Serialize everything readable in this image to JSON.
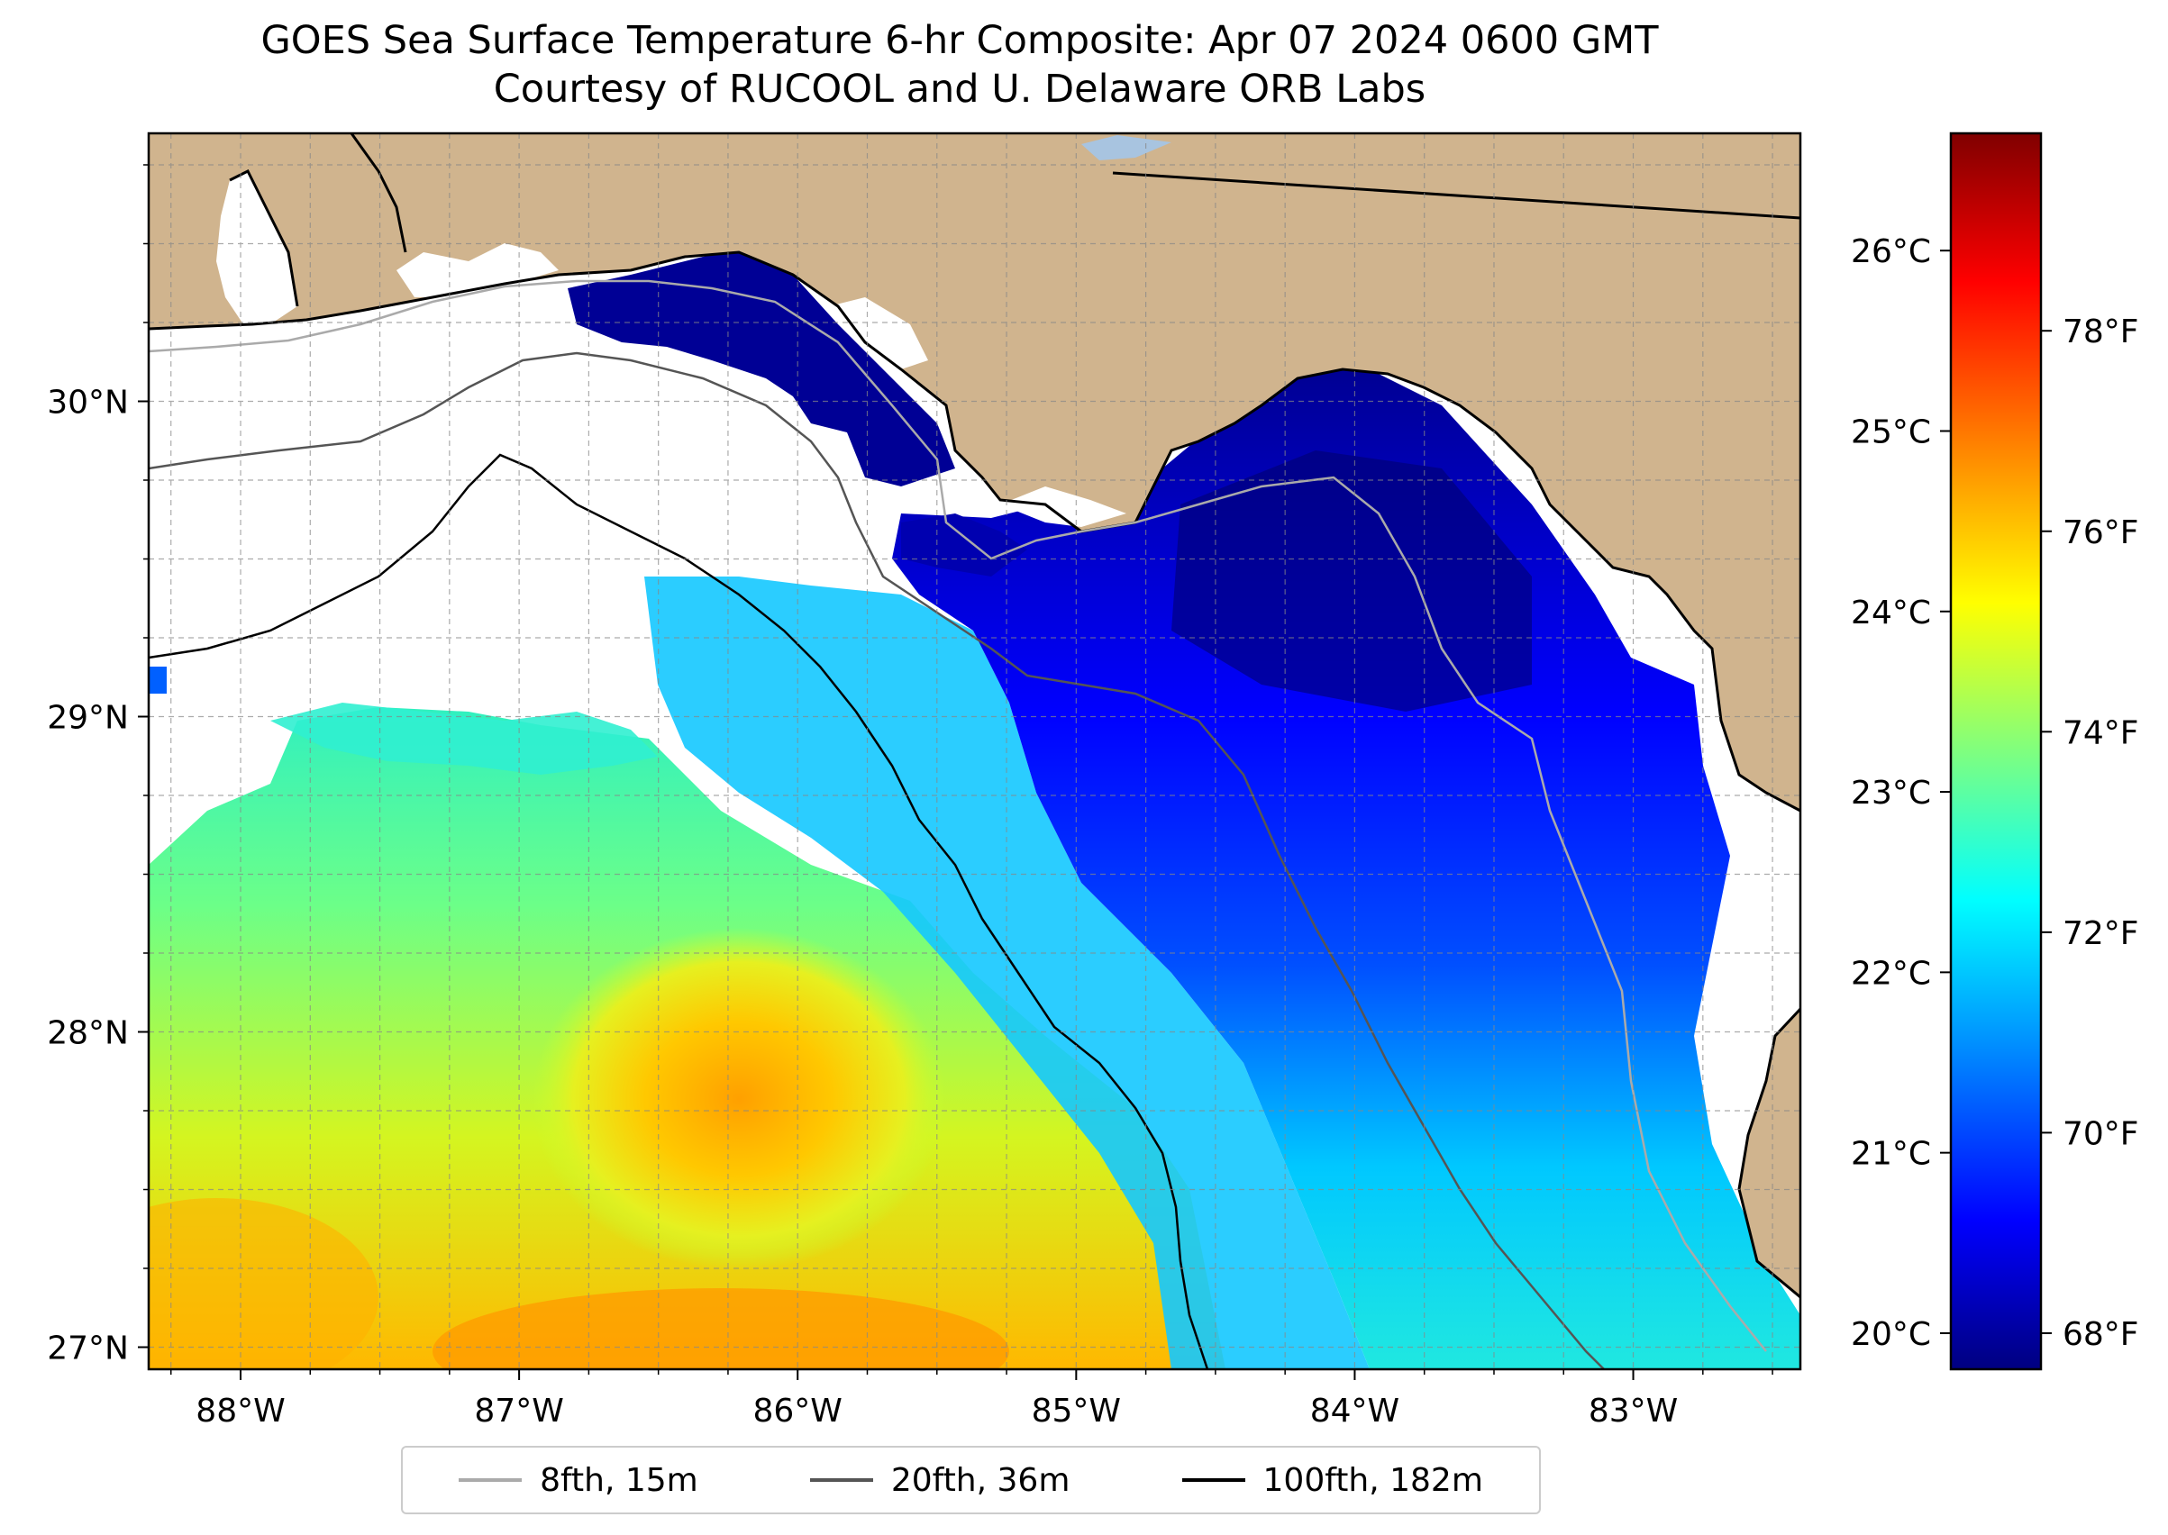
{
  "title": "GOES Sea Surface Temperature 6-hr Composite: Apr 07 2024 0600 GMT",
  "subtitle": "Courtesy of RUCOOL and U. Delaware ORB Labs",
  "map": {
    "lon_ticks": [
      "88°W",
      "87°W",
      "86°W",
      "85°W",
      "84°W",
      "83°W"
    ],
    "lat_ticks": [
      "27°N",
      "28°N",
      "29°N",
      "30°N"
    ],
    "lon_range": [
      -88.33,
      -82.4
    ],
    "lat_range": [
      26.93,
      30.85
    ],
    "grid": true,
    "land_color": "#d0b48e",
    "no_data_color": "#ffffff"
  },
  "colorbar": {
    "celsius_ticks": [
      "20°C",
      "21°C",
      "22°C",
      "23°C",
      "24°C",
      "25°C",
      "26°C"
    ],
    "fahrenheit_ticks": [
      "68°F",
      "70°F",
      "72°F",
      "74°F",
      "76°F",
      "78°F"
    ],
    "colormap": "jet",
    "colors": [
      "#000080",
      "#0000ff",
      "#00a0ff",
      "#00ffff",
      "#7fff7f",
      "#ffff00",
      "#ff8000",
      "#ff0000",
      "#800000"
    ]
  },
  "legend": {
    "items": [
      {
        "label": "8fth, 15m",
        "color": "#aaaaaa"
      },
      {
        "label": "20fth, 36m",
        "color": "#555555"
      },
      {
        "label": "100fth, 182m",
        "color": "#000000"
      }
    ]
  }
}
